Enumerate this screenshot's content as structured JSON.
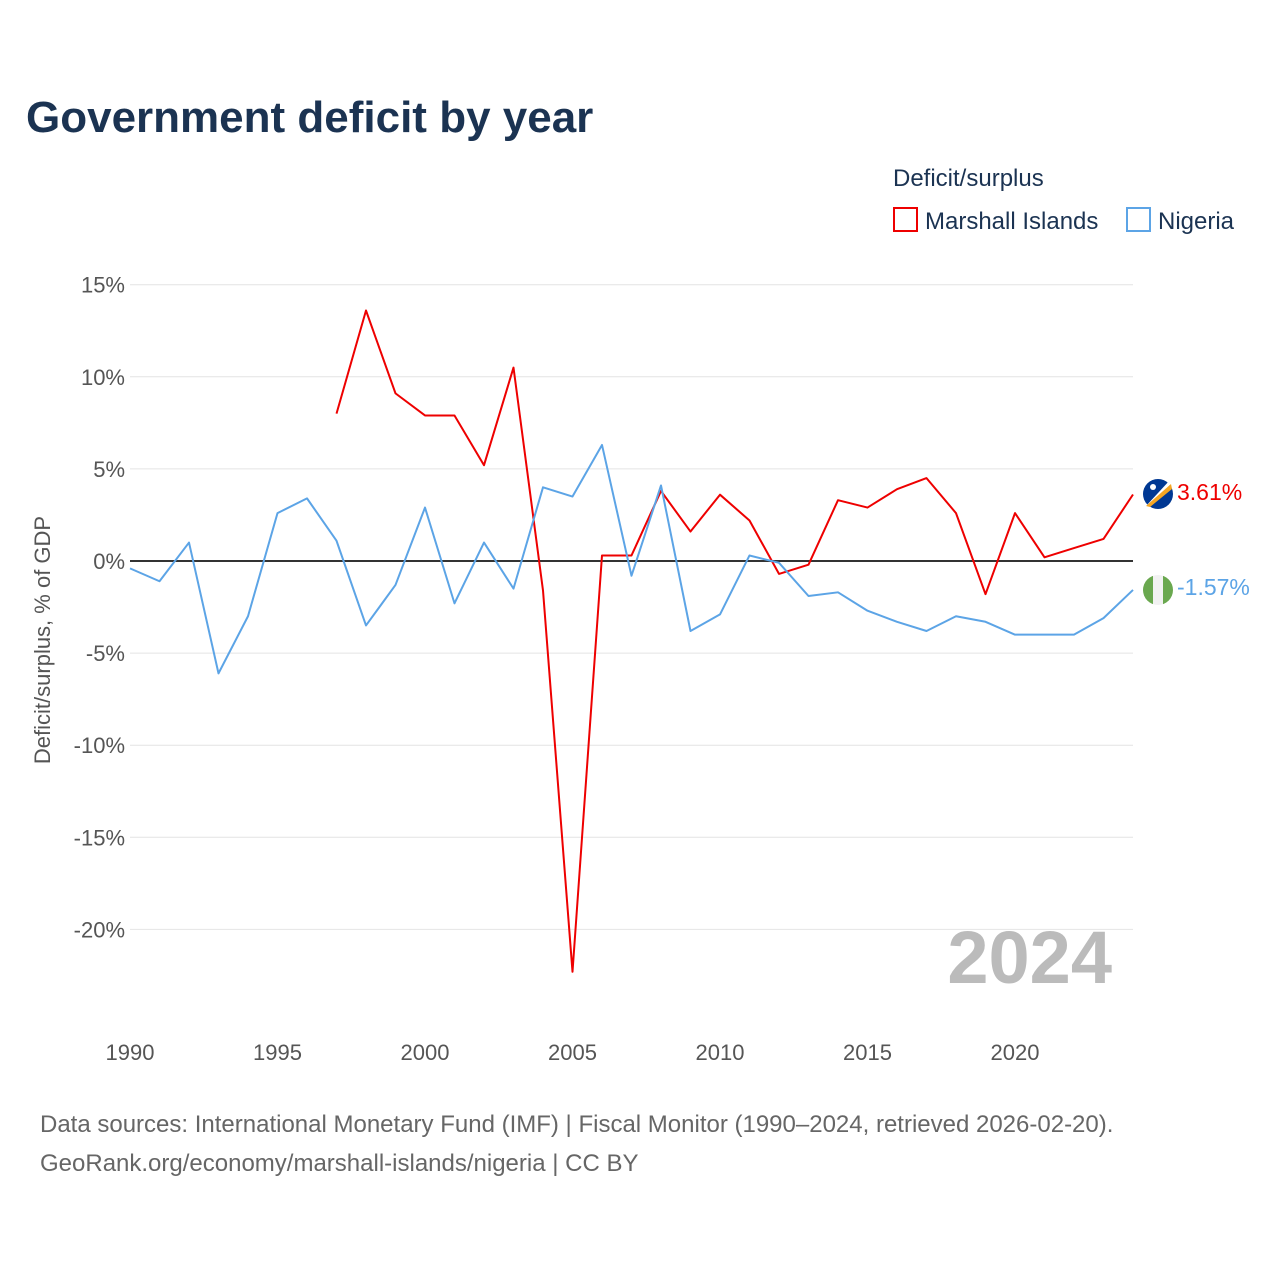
{
  "chart_data": {
    "type": "line",
    "title": "Government deficit by year",
    "ylabel": "Deficit/surplus, % of GDP",
    "xlabel": "",
    "ylim": [
      -25,
      15
    ],
    "xlim": [
      1990,
      2024
    ],
    "yticks": [
      15,
      10,
      5,
      0,
      -5,
      -10,
      -15,
      -20
    ],
    "ytick_labels": [
      "15%",
      "10%",
      "5%",
      "0%",
      "-5%",
      "-10%",
      "-15%",
      "-20%"
    ],
    "xticks": [
      1990,
      1995,
      2000,
      2005,
      2010,
      2015,
      2020
    ],
    "xtick_labels": [
      "1990",
      "1995",
      "2000",
      "2005",
      "2010",
      "2015",
      "2020"
    ],
    "legend_title": "Deficit/surplus",
    "legend_position": "top-right",
    "grid": true,
    "year_label": "2024",
    "series": [
      {
        "name": "Marshall Islands",
        "color": "#ee0000",
        "end_label": "3.61%",
        "x": [
          1997,
          1998,
          1999,
          2000,
          2001,
          2002,
          2003,
          2004,
          2005,
          2006,
          2007,
          2008,
          2009,
          2010,
          2011,
          2012,
          2013,
          2014,
          2015,
          2016,
          2017,
          2018,
          2019,
          2020,
          2021,
          2022,
          2023,
          2024
        ],
        "values": [
          8.0,
          13.6,
          9.1,
          7.9,
          7.9,
          5.2,
          10.5,
          -1.6,
          -22.3,
          0.3,
          0.3,
          3.8,
          1.6,
          3.6,
          2.2,
          -0.7,
          -0.2,
          3.3,
          2.9,
          3.9,
          4.5,
          2.6,
          -1.8,
          2.6,
          0.2,
          0.7,
          1.2,
          3.61
        ]
      },
      {
        "name": "Nigeria",
        "color": "#5ca4e6",
        "end_label": "-1.57%",
        "x": [
          1990,
          1991,
          1992,
          1993,
          1994,
          1995,
          1996,
          1997,
          1998,
          1999,
          2000,
          2001,
          2002,
          2003,
          2004,
          2005,
          2006,
          2007,
          2008,
          2009,
          2010,
          2011,
          2012,
          2013,
          2014,
          2015,
          2016,
          2017,
          2018,
          2019,
          2020,
          2021,
          2022,
          2023,
          2024
        ],
        "values": [
          -0.4,
          -1.1,
          1.0,
          -6.1,
          -3.0,
          2.6,
          3.4,
          1.1,
          -3.5,
          -1.3,
          2.9,
          -2.3,
          1.0,
          -1.5,
          4.0,
          3.5,
          6.3,
          -0.8,
          4.1,
          -3.8,
          -2.9,
          0.3,
          -0.1,
          -1.9,
          -1.7,
          -2.7,
          -3.3,
          -3.8,
          -3.0,
          -3.3,
          -4.0,
          -4.0,
          -4.0,
          -3.1,
          -1.57
        ]
      }
    ]
  },
  "footer": {
    "line1": "Data sources: International Monetary Fund (IMF) | Fiscal Monitor (1990–2024, retrieved 2026-02-20).",
    "line2": "GeoRank.org/economy/marshall-islands/nigeria | CC BY"
  }
}
